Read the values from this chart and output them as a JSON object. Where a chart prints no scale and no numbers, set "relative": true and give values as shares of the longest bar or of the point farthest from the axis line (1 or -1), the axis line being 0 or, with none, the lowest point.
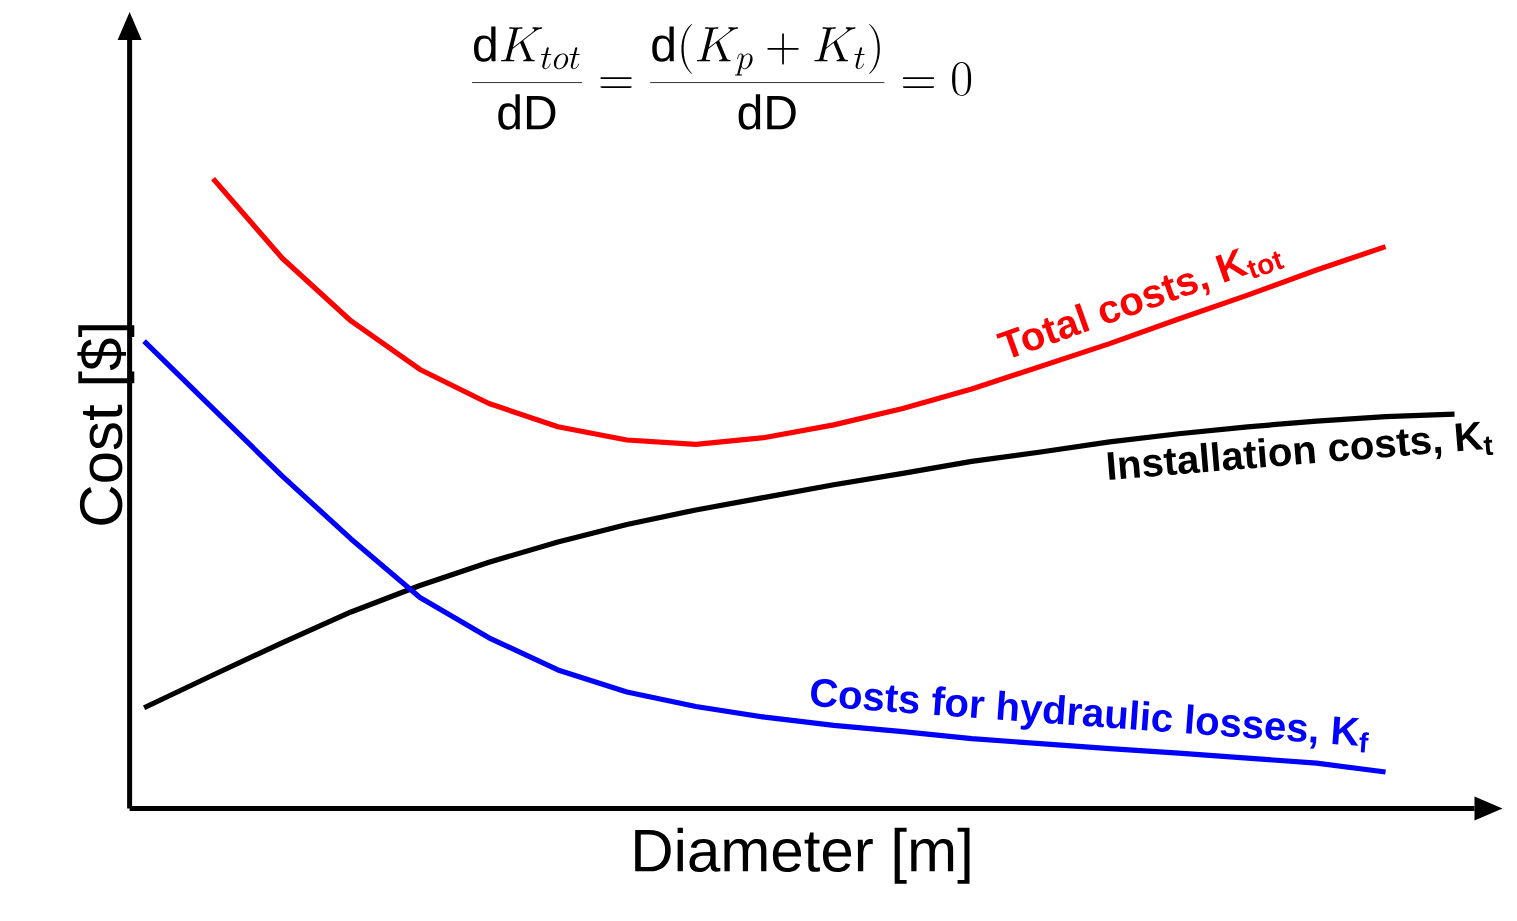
{
  "chart_data": {
    "type": "line",
    "relative": true,
    "title": "\\frac{\\mathrm{d}K_{tot}}{\\mathrm{dD}} = \\frac{\\mathrm{d}(K_{p} + K_{t})}{\\mathrm{dD}} = 0",
    "xlabel": "Diameter [m]",
    "ylabel": "Cost [$]",
    "marker": "none",
    "line_style": "solid",
    "categories": [
      null,
      null,
      null,
      null,
      null,
      null,
      null,
      null,
      null,
      null,
      null,
      null,
      null,
      null,
      null,
      null,
      null,
      null,
      null,
      null
    ],
    "series": [
      {
        "name": "Total costs, K$_{tot}$",
        "color": "#ff0000",
        "values": [
          null,
          1,
          0.874,
          0.774,
          0.697,
          0.643,
          0.606,
          0.585,
          0.578,
          0.589,
          0.609,
          0.635,
          0.666,
          0.702,
          0.738,
          0.777,
          0.815,
          0.855,
          0.892,
          null
        ]
      },
      {
        "name": "Installation costs, K$_{t}$",
        "color": "#000000",
        "values": [
          0.16,
          0.212,
          0.263,
          0.312,
          0.354,
          0.391,
          0.423,
          0.451,
          0.474,
          0.494,
          0.514,
          0.532,
          0.551,
          0.566,
          0.582,
          0.595,
          0.606,
          0.615,
          0.622,
          0.626
        ]
      },
      {
        "name": "Costs for hydraulic losses, K$_{f}$",
        "color": "#0000ff",
        "values": [
          0.742,
          0.635,
          0.528,
          0.428,
          0.335,
          0.271,
          0.22,
          0.185,
          0.162,
          0.145,
          0.132,
          0.122,
          0.111,
          0.103,
          0.095,
          0.088,
          0.08,
          0.072,
          0.058,
          null
        ]
      }
    ]
  }
}
